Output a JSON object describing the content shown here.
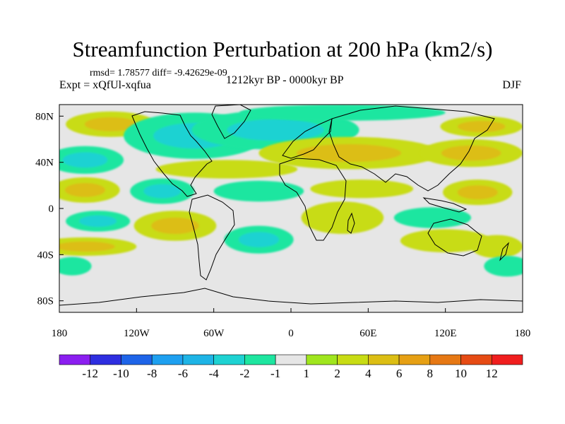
{
  "header": {
    "title": "Streamfunction Perturbation at 200 hPa (km2/s)",
    "stats": "rmsd= 1.78577 diff= -9.42629e-09",
    "experiment": "Expt = xQfUl-xqfua",
    "period": "1212kyr BP - 0000kyr BP",
    "season": "DJF"
  },
  "colors": {
    "levels": [
      "#8b1ef0",
      "#2e2ee0",
      "#1e64e8",
      "#1ea0f0",
      "#1eb4e6",
      "#1ed2d2",
      "#1ee6a0",
      "#e6e6e6",
      "#a0e61e",
      "#c8dc14",
      "#dcbe14",
      "#e6a014",
      "#e67814",
      "#e64b14",
      "#f01e1e"
    ],
    "land_outline": "#000000",
    "neutral": "#e6e6e6"
  },
  "chart_data": {
    "type": "heatmap",
    "title": "Streamfunction Perturbation at 200 hPa (km2/s)",
    "xlabel": "",
    "ylabel": "",
    "x_ticks": [
      "180",
      "120W",
      "60W",
      "0",
      "60E",
      "120E",
      "180"
    ],
    "x_tick_values": [
      -180,
      -120,
      -60,
      0,
      60,
      120,
      180
    ],
    "y_ticks": [
      "80N",
      "40N",
      "0",
      "40S",
      "80S"
    ],
    "y_tick_values": [
      80,
      40,
      0,
      -40,
      -80
    ],
    "xlim": [
      -180,
      180
    ],
    "ylim": [
      -90,
      90
    ],
    "colorbar": {
      "labels": [
        "-12",
        "-10",
        "-8",
        "-6",
        "-4",
        "-2",
        "-1",
        "1",
        "2",
        "4",
        "6",
        "8",
        "10",
        "12"
      ],
      "levels": [
        -12,
        -10,
        -8,
        -6,
        -4,
        -2,
        -1,
        1,
        2,
        4,
        6,
        8,
        10,
        12
      ]
    },
    "anomalies": [
      {
        "lon": -140,
        "lat": 73,
        "rx": 35,
        "ry": 11,
        "value": 4
      },
      {
        "lon": -75,
        "lat": 63,
        "rx": 55,
        "ry": 20,
        "value": -4
      },
      {
        "lon": -12,
        "lat": 68,
        "rx": 65,
        "ry": 17,
        "value": -3
      },
      {
        "lon": 40,
        "lat": 83,
        "rx": 80,
        "ry": 7,
        "value": -2
      },
      {
        "lon": 148,
        "lat": 71,
        "rx": 32,
        "ry": 9,
        "value": 4
      },
      {
        "lon": -160,
        "lat": 42,
        "rx": 30,
        "ry": 12,
        "value": -3
      },
      {
        "lon": -50,
        "lat": 34,
        "rx": 55,
        "ry": 8,
        "value": 2
      },
      {
        "lon": 45,
        "lat": 48,
        "rx": 70,
        "ry": 14,
        "value": 4
      },
      {
        "lon": 140,
        "lat": 48,
        "rx": 40,
        "ry": 12,
        "value": 4
      },
      {
        "lon": -160,
        "lat": 16,
        "rx": 27,
        "ry": 11,
        "value": 4
      },
      {
        "lon": -100,
        "lat": 15,
        "rx": 25,
        "ry": 11,
        "value": -3
      },
      {
        "lon": -25,
        "lat": 15,
        "rx": 35,
        "ry": 9,
        "value": -2
      },
      {
        "lon": 55,
        "lat": 17,
        "rx": 40,
        "ry": 8,
        "value": 2
      },
      {
        "lon": 145,
        "lat": 14,
        "rx": 27,
        "ry": 11,
        "value": 4
      },
      {
        "lon": -150,
        "lat": -11,
        "rx": 25,
        "ry": 9,
        "value": -3
      },
      {
        "lon": -90,
        "lat": -15,
        "rx": 32,
        "ry": 13,
        "value": 4
      },
      {
        "lon": 40,
        "lat": -8,
        "rx": 32,
        "ry": 14,
        "value": 2
      },
      {
        "lon": 110,
        "lat": -8,
        "rx": 30,
        "ry": 9,
        "value": -2
      },
      {
        "lon": -160,
        "lat": -33,
        "rx": 40,
        "ry": 8,
        "value": 4
      },
      {
        "lon": -25,
        "lat": -27,
        "rx": 27,
        "ry": 12,
        "value": -3
      },
      {
        "lon": 120,
        "lat": -28,
        "rx": 35,
        "ry": 10,
        "value": 2
      },
      {
        "lon": 160,
        "lat": -33,
        "rx": 20,
        "ry": 10,
        "value": 2
      },
      {
        "lon": -170,
        "lat": -50,
        "rx": 15,
        "ry": 8,
        "value": -2
      },
      {
        "lon": 168,
        "lat": -50,
        "rx": 18,
        "ry": 9,
        "value": -2
      }
    ]
  }
}
